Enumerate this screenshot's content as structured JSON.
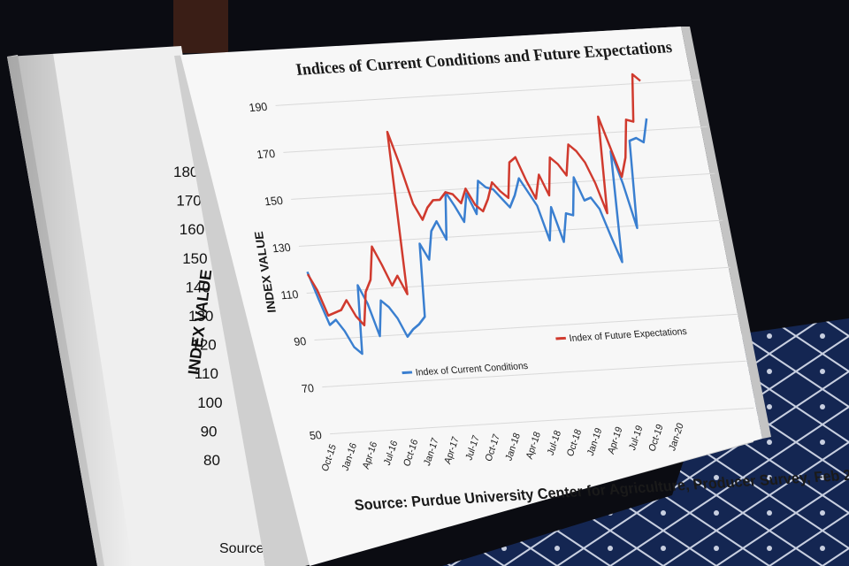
{
  "back_board": {
    "y_ticks": [
      "180",
      "170",
      "160",
      "150",
      "140",
      "130",
      "120",
      "110",
      "100",
      "90",
      "80"
    ],
    "ylabel": "INDEX VALUE",
    "source_fragment": "Source:"
  },
  "chart_data": {
    "type": "line",
    "title": "Indices of Current Conditions and Future Expectations",
    "ylabel": "INDEX VALUE",
    "xlabel": "",
    "ylim": [
      50,
      190
    ],
    "y_ticks": [
      50,
      70,
      90,
      110,
      130,
      150,
      170,
      190
    ],
    "x_tick_labels": [
      "Oct-15",
      "Jan-16",
      "Apr-16",
      "Jul-16",
      "Oct-16",
      "Jan-17",
      "Apr-17",
      "Jul-17",
      "Oct-17",
      "Jan-18",
      "Apr-18",
      "Jul-18",
      "Oct-18",
      "Jan-19",
      "Apr-19",
      "Jul-19",
      "Oct-19",
      "Jan-20"
    ],
    "grid": true,
    "legend_placement": "bottom-center",
    "series": [
      {
        "name": "Index of Current Conditions",
        "color": "#3a7fd0",
        "values": [
          119,
          107,
          96,
          98,
          93,
          86,
          83,
          112,
          104,
          90,
          105,
          102,
          97,
          89,
          92,
          94,
          97,
          128,
          121,
          133,
          137,
          129,
          149,
          143,
          136,
          148,
          139,
          153,
          150,
          149,
          145,
          141,
          146,
          153,
          147,
          141,
          126,
          140,
          125,
          137,
          136,
          152,
          142,
          143,
          138,
          126,
          115,
          162,
          148,
          129,
          166,
          167,
          165,
          175
        ]
      },
      {
        "name": "Index of Future Expectations",
        "color": "#d03a2e",
        "values": [
          118,
          111,
          100,
          101,
          102,
          106,
          99,
          95,
          109,
          114,
          128,
          120,
          111,
          115,
          107,
          176,
          162,
          145,
          138,
          143,
          146,
          146,
          149,
          148,
          144,
          150,
          143,
          140,
          145,
          152,
          148,
          145,
          160,
          162,
          152,
          144,
          154,
          145,
          161,
          158,
          153,
          166,
          163,
          158,
          149,
          136,
          177,
          164,
          151,
          159,
          175,
          174,
          194,
          191
        ]
      }
    ],
    "source": "Source: Purdue University Center for Agriculture, Producer Survey, Feb 2020"
  },
  "colors": {
    "background": "#0b0c12",
    "carpet": "#142652",
    "board": "#f6f6f6",
    "current_series": "#3a7fd0",
    "future_series": "#d03a2e"
  }
}
